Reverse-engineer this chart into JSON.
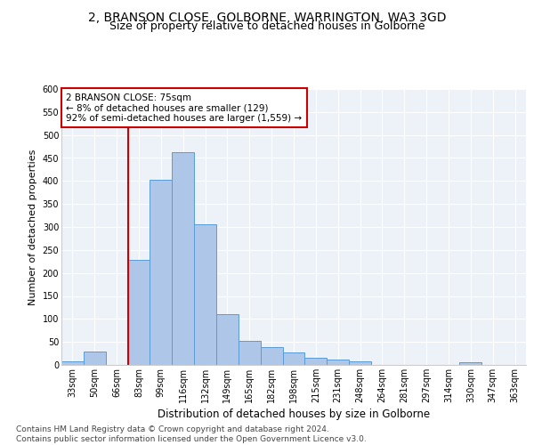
{
  "title1": "2, BRANSON CLOSE, GOLBORNE, WARRINGTON, WA3 3GD",
  "title2": "Size of property relative to detached houses in Golborne",
  "xlabel": "Distribution of detached houses by size in Golborne",
  "ylabel": "Number of detached properties",
  "categories": [
    "33sqm",
    "50sqm",
    "66sqm",
    "83sqm",
    "99sqm",
    "116sqm",
    "132sqm",
    "149sqm",
    "165sqm",
    "182sqm",
    "198sqm",
    "215sqm",
    "231sqm",
    "248sqm",
    "264sqm",
    "281sqm",
    "297sqm",
    "314sqm",
    "330sqm",
    "347sqm",
    "363sqm"
  ],
  "values": [
    7,
    30,
    0,
    228,
    402,
    463,
    305,
    110,
    53,
    39,
    27,
    15,
    12,
    8,
    0,
    0,
    0,
    0,
    5,
    0,
    0
  ],
  "bar_color": "#aec6e8",
  "bar_edge_color": "#5b9bd5",
  "vline_x": 1.5,
  "vline_color": "#cc0000",
  "annotation_text": "2 BRANSON CLOSE: 75sqm\n← 8% of detached houses are smaller (129)\n92% of semi-detached houses are larger (1,559) →",
  "annotation_box_color": "#cc0000",
  "annotation_text_color": "#000000",
  "ylim": [
    0,
    600
  ],
  "yticks": [
    0,
    50,
    100,
    150,
    200,
    250,
    300,
    350,
    400,
    450,
    500,
    550,
    600
  ],
  "bg_color": "#edf2f9",
  "footer_text": "Contains HM Land Registry data © Crown copyright and database right 2024.\nContains public sector information licensed under the Open Government Licence v3.0.",
  "title1_fontsize": 10,
  "title2_fontsize": 9,
  "xlabel_fontsize": 8.5,
  "ylabel_fontsize": 8,
  "tick_fontsize": 7,
  "footer_fontsize": 6.5,
  "annotation_fontsize": 7.5
}
